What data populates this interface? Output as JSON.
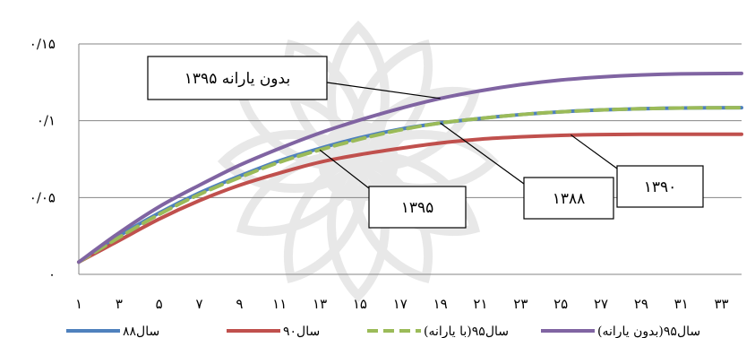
{
  "chart_data": {
    "type": "line",
    "title": "",
    "xlabel": "",
    "ylabel": "",
    "grid": true,
    "legend_position": "bottom",
    "x_ticks": [
      1,
      3,
      5,
      7,
      9,
      11,
      13,
      15,
      17,
      19,
      21,
      23,
      25,
      27,
      29,
      31,
      33
    ],
    "x_tick_labels": [
      "۱",
      "۳",
      "۵",
      "۷",
      "۹",
      "۱۱",
      "۱۳",
      "۱۵",
      "۱۷",
      "۱۹",
      "۲۱",
      "۲۳",
      "۲۵",
      "۲۷",
      "۲۹",
      "۳۱",
      "۳۳"
    ],
    "xlim": [
      1,
      34
    ],
    "ylim": [
      0,
      0.15
    ],
    "y_ticks": [
      0,
      0.05,
      0.1,
      0.15
    ],
    "y_tick_labels": [
      "۰",
      "۰/۰۵",
      "۰/۱",
      "۰/۱۵"
    ],
    "x": [
      1,
      3,
      5,
      7,
      9,
      11,
      13,
      15,
      17,
      19,
      21,
      23,
      25,
      27,
      29,
      31,
      34
    ],
    "series": [
      {
        "name": "سال۸۸",
        "color": "#4f81bd",
        "dash": "solid",
        "values": [
          0.008,
          0.025,
          0.04,
          0.053,
          0.064,
          0.074,
          0.082,
          0.089,
          0.0945,
          0.0985,
          0.1015,
          0.104,
          0.1058,
          0.107,
          0.1078,
          0.1083,
          0.1085
        ]
      },
      {
        "name": "سال۹۰",
        "color": "#c0504d",
        "dash": "solid",
        "values": [
          0.008,
          0.022,
          0.036,
          0.048,
          0.058,
          0.066,
          0.073,
          0.078,
          0.082,
          0.0855,
          0.088,
          0.0895,
          0.0905,
          0.091,
          0.0912,
          0.0912,
          0.0912
        ]
      },
      {
        "name": "سال۹۵(با یارانه)",
        "color": "#9bbb59",
        "dash": "dashed",
        "values": [
          0.008,
          0.024,
          0.039,
          0.052,
          0.063,
          0.073,
          0.081,
          0.088,
          0.094,
          0.0985,
          0.1015,
          0.104,
          0.1058,
          0.107,
          0.1078,
          0.1083,
          0.1085
        ]
      },
      {
        "name": "سال۹۵(بدون یارانه)",
        "color": "#8064a2",
        "dash": "solid",
        "values": [
          0.008,
          0.027,
          0.044,
          0.058,
          0.071,
          0.082,
          0.092,
          0.1005,
          0.108,
          0.1145,
          0.1195,
          0.1235,
          0.1265,
          0.1285,
          0.1298,
          0.1305,
          0.1308
        ]
      }
    ],
    "annotations": [
      {
        "text": "بدون یارانه ۱۳۹۵",
        "target_x": 19,
        "target_y": 0.1145
      },
      {
        "text": "۱۳۹۵",
        "target_x": 13,
        "target_y": 0.081
      },
      {
        "text": "۱۳۸۸",
        "target_x": 19,
        "target_y": 0.0985
      },
      {
        "text": "۱۳۹۰",
        "target_x": 25.5,
        "target_y": 0.0908
      }
    ]
  }
}
